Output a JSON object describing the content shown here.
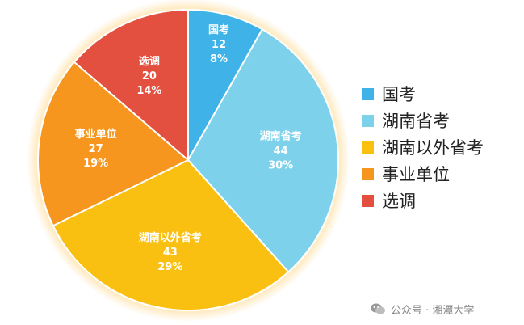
{
  "chart_data": {
    "type": "pie",
    "slices": [
      {
        "name": "国考",
        "value": 12,
        "percent": "8%",
        "color": "#3fb3e8"
      },
      {
        "name": "湖南省考",
        "value": 44,
        "percent": "30%",
        "color": "#7dd1ea"
      },
      {
        "name": "湖南以外省考",
        "value": 43,
        "percent": "29%",
        "color": "#f9c012"
      },
      {
        "name": "事业单位",
        "value": 27,
        "percent": "19%",
        "color": "#f6961e"
      },
      {
        "name": "选调",
        "value": 20,
        "percent": "14%",
        "color": "#e4503f"
      }
    ],
    "start_angle_deg": 0,
    "direction": "clockwise",
    "legend_position": "right",
    "legend": [
      "国考",
      "湖南省考",
      "湖南以外省考",
      "事业单位",
      "选调"
    ]
  },
  "watermark": {
    "text": "公众号 · 湘潭大学",
    "icon": "wechat-icon"
  }
}
